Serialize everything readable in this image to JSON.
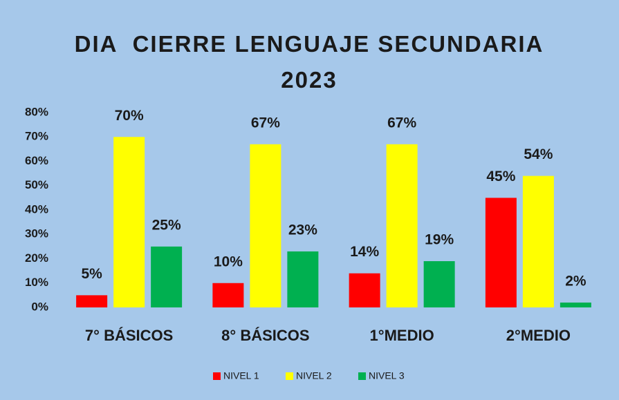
{
  "chart_data": {
    "type": "bar",
    "title": "DIA  CIERRE LENGUAJE SECUNDARIA 2023",
    "categories": [
      "7° BÁSICOS",
      "8° BÁSICOS",
      "1°MEDIO",
      "2°MEDIO"
    ],
    "series": [
      {
        "name": "NIVEL 1",
        "color": "#ff0000",
        "values": [
          5,
          10,
          14,
          45
        ],
        "value_labels": [
          "5%",
          "10%",
          "14%",
          "45%"
        ]
      },
      {
        "name": "NIVEL 2",
        "color": "#ffff00",
        "values": [
          70,
          67,
          67,
          54
        ],
        "value_labels": [
          "70%",
          "67%",
          "67%",
          "54%"
        ]
      },
      {
        "name": "NIVEL 3",
        "color": "#00b050",
        "values": [
          25,
          23,
          19,
          2
        ],
        "value_labels": [
          "25%",
          "23%",
          "19%",
          "2%"
        ]
      }
    ],
    "ylim": [
      0,
      80
    ],
    "yticks": [
      {
        "value": 0,
        "label": "0%"
      },
      {
        "value": 10,
        "label": "10%"
      },
      {
        "value": 20,
        "label": "20%"
      },
      {
        "value": 30,
        "label": "30%"
      },
      {
        "value": 40,
        "label": "40%"
      },
      {
        "value": 50,
        "label": "50%"
      },
      {
        "value": 60,
        "label": "60%"
      },
      {
        "value": 70,
        "label": "70%"
      },
      {
        "value": 80,
        "label": "80%"
      }
    ],
    "grid": false,
    "legend": "bottom"
  }
}
